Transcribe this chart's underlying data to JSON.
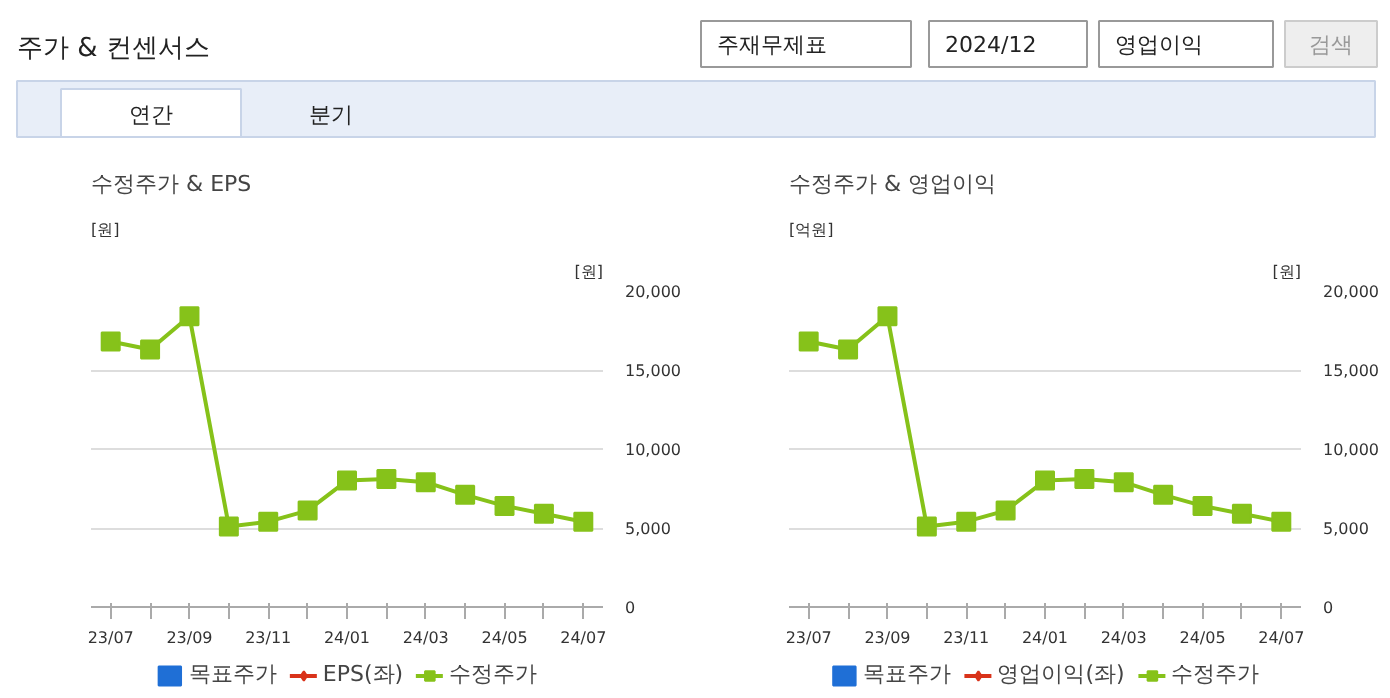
{
  "chart_data": [
    {
      "type": "other",
      "title": "주가 & 컨센서스",
      "annotations": [
        "주재무제표",
        "2024/12",
        "영업이익",
        "검색",
        "연간",
        "분기"
      ]
    },
    {
      "type": "line",
      "title": "수정주가 & EPS",
      "ylabel": "[원]",
      "y2label": "[원]",
      "categories": [
        "23/07",
        null,
        "23/09",
        null,
        "23/11",
        null,
        "24/01",
        null,
        "24/03",
        null,
        "24/05",
        null,
        "24/07"
      ],
      "y2lim": [
        0,
        20000
      ],
      "y2ticks": [
        0,
        {
          "value": 5000,
          "label": "5,000"
        },
        {
          "value": 10000,
          "label": "10,000"
        },
        {
          "value": 15000,
          "label": "15,000"
        },
        {
          "value": 20000,
          "label": "20,000"
        }
      ],
      "grid": "y",
      "legend": "bottom",
      "tick_labels": [
        "x",
        "y2"
      ],
      "series": [
        {
          "name": "목표주가",
          "type": "bar",
          "color": "#1f6fd6",
          "values": [
            null,
            null,
            null,
            null,
            null,
            null,
            null,
            null,
            null,
            null,
            null,
            null,
            null
          ]
        },
        {
          "name": "EPS(좌)",
          "type": "line",
          "marker": "diamond",
          "color": "#d9331a",
          "values": [
            null,
            null,
            null,
            null,
            null,
            null,
            null,
            null,
            null,
            null,
            null,
            null,
            null
          ]
        },
        {
          "name": "수정주가",
          "type": "line",
          "marker": "square",
          "axis": "y2",
          "color": "#86c21a",
          "values": [
            16800,
            16300,
            18400,
            5100,
            5400,
            6100,
            8000,
            8100,
            7900,
            7100,
            6400,
            5900,
            5400
          ]
        }
      ]
    },
    {
      "type": "line",
      "title": "수정주가 & 영업이익",
      "ylabel": "[억원]",
      "y2label": "[원]",
      "categories": [
        "23/07",
        null,
        "23/09",
        null,
        "23/11",
        null,
        "24/01",
        null,
        "24/03",
        null,
        "24/05",
        null,
        "24/07"
      ],
      "y2lim": [
        0,
        20000
      ],
      "y2ticks": [
        0,
        {
          "value": 5000,
          "label": "5,000"
        },
        {
          "value": 10000,
          "label": "10,000"
        },
        {
          "value": 15000,
          "label": "15,000"
        },
        {
          "value": 20000,
          "label": "20,000"
        }
      ],
      "grid": "y",
      "legend": "bottom",
      "tick_labels": [
        "x",
        "y2"
      ],
      "series": [
        {
          "name": "목표주가",
          "type": "bar",
          "color": "#1f6fd6",
          "values": [
            null,
            null,
            null,
            null,
            null,
            null,
            null,
            null,
            null,
            null,
            null,
            null,
            null
          ]
        },
        {
          "name": "영업이익(좌)",
          "type": "line",
          "marker": "diamond",
          "color": "#d9331a",
          "values": [
            null,
            null,
            null,
            null,
            null,
            null,
            null,
            null,
            null,
            null,
            null,
            null,
            null
          ]
        },
        {
          "name": "수정주가",
          "type": "line",
          "marker": "square",
          "axis": "y2",
          "color": "#86c21a",
          "values": [
            16800,
            16300,
            18400,
            5100,
            5400,
            6100,
            8000,
            8100,
            7900,
            7100,
            6400,
            5900,
            5400
          ]
        }
      ]
    }
  ]
}
